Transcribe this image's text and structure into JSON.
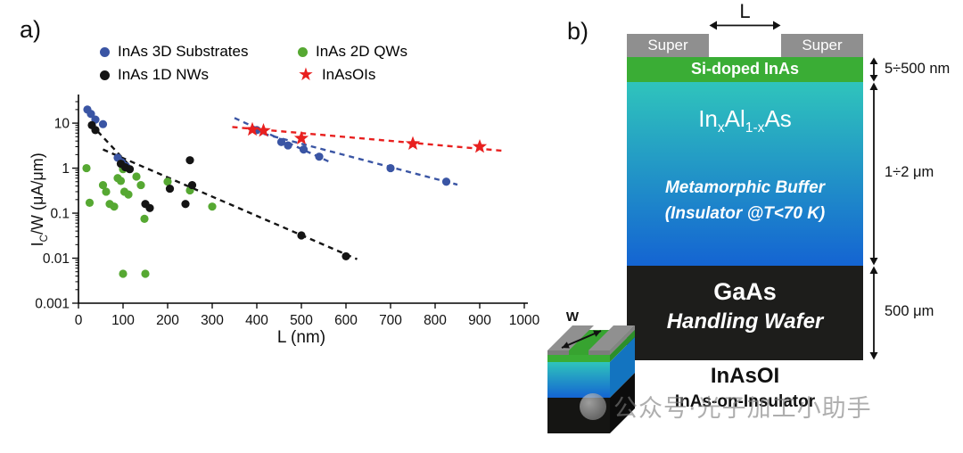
{
  "watermark": {
    "text": "公众号·光子加工小助手"
  },
  "panel_a": {
    "label": "a)",
    "xlabel": "L (nm)",
    "ylabel": {
      "pre": "I",
      "sub": "C",
      "post": "/W (μA/μm)"
    },
    "legend": [
      {
        "label": "InAs 3D Substrates"
      },
      {
        "label": "InAs 2D QWs"
      },
      {
        "label": "InAs 1D NWs"
      },
      {
        "label": "InAsOIs"
      }
    ]
  },
  "chart_data": {
    "type": "scatter",
    "title": "",
    "xlabel": "L (nm)",
    "ylabel": "IC/W (μA/μm)",
    "legend_position": "top",
    "grid": false,
    "x_axis": {
      "min": 0,
      "max": 1000,
      "ticks": [
        0,
        100,
        200,
        300,
        400,
        500,
        600,
        700,
        800,
        900,
        1000
      ]
    },
    "y_axis": {
      "scale": "log",
      "min": 0.001,
      "max": 36,
      "ticks": [
        10,
        1,
        0.1,
        0.01,
        0.001
      ],
      "tick_labels": [
        "10",
        "1",
        "0.1",
        "0.01",
        "0.001"
      ]
    },
    "series": [
      {
        "name": "InAs 3D Substrates",
        "color": "#3a55a4",
        "marker": "circle",
        "points": [
          [
            20,
            20
          ],
          [
            28,
            16
          ],
          [
            38,
            12
          ],
          [
            55,
            9.5
          ],
          [
            88,
            1.7
          ],
          [
            97,
            1.35
          ],
          [
            107,
            1.1
          ],
          [
            400,
            7
          ],
          [
            455,
            3.8
          ],
          [
            470,
            3.2
          ],
          [
            505,
            2.6
          ],
          [
            540,
            1.8
          ],
          [
            700,
            1.0
          ],
          [
            825,
            0.5
          ]
        ],
        "trendlines": [
          [
            [
              350,
              13
            ],
            [
              565,
              1.35
            ]
          ],
          [
            [
              415,
              5.8
            ],
            [
              850,
              0.43
            ]
          ]
        ]
      },
      {
        "name": "InAs 2D QWs",
        "color": "#56a832",
        "marker": "circle",
        "points": [
          [
            18,
            1.0
          ],
          [
            25,
            0.17
          ],
          [
            55,
            0.42
          ],
          [
            62,
            0.3
          ],
          [
            70,
            0.16
          ],
          [
            80,
            0.14
          ],
          [
            88,
            0.6
          ],
          [
            95,
            0.52
          ],
          [
            100,
            0.95
          ],
          [
            103,
            0.3
          ],
          [
            100,
            0.0045
          ],
          [
            112,
            0.26
          ],
          [
            130,
            0.65
          ],
          [
            140,
            0.42
          ],
          [
            148,
            0.075
          ],
          [
            150,
            0.0045
          ],
          [
            200,
            0.5
          ],
          [
            250,
            0.32
          ],
          [
            300,
            0.14
          ]
        ],
        "trendlines": []
      },
      {
        "name": "InAs 1D NWs",
        "color": "#141414",
        "marker": "circle",
        "points": [
          [
            30,
            9
          ],
          [
            38,
            7
          ],
          [
            95,
            1.25
          ],
          [
            105,
            1.05
          ],
          [
            115,
            0.95
          ],
          [
            150,
            0.16
          ],
          [
            160,
            0.13
          ],
          [
            205,
            0.35
          ],
          [
            240,
            0.16
          ],
          [
            250,
            1.5
          ],
          [
            255,
            0.42
          ],
          [
            500,
            0.032
          ],
          [
            600,
            0.011
          ]
        ],
        "trendlines": [
          [
            [
              28,
              9.5
            ],
            [
              118,
              1.05
            ]
          ],
          [
            [
              55,
              2.6
            ],
            [
              625,
              0.0095
            ]
          ]
        ]
      },
      {
        "name": "InAsOIs",
        "color": "#e8201f",
        "marker": "star",
        "points": [
          [
            390,
            7.2
          ],
          [
            415,
            6.8
          ],
          [
            500,
            4.6
          ],
          [
            750,
            3.5
          ],
          [
            900,
            3.0
          ]
        ],
        "trendlines": [
          [
            [
              345,
              8.2
            ],
            [
              958,
              2.4
            ]
          ]
        ]
      }
    ]
  },
  "panel_b": {
    "label": "b)",
    "length_label": "L",
    "width_label": "W",
    "contact_left_label": "Super",
    "contact_right_label": "Super",
    "contact_color": "#8f8f8f",
    "layers": {
      "channel": {
        "name": "Si-doped InAs",
        "thickness": "5÷500 nm",
        "color": "#3aad35"
      },
      "buffer": {
        "formula_parts": {
          "p1": "In",
          "s1": "x",
          "p2": "Al",
          "s2": "1-x",
          "p3": "As"
        },
        "role": "Metamorphic Buffer",
        "condition": "(Insulator @T<70 K)",
        "thickness": "1÷2 μm",
        "color_top": "#2fc4bc",
        "color_bottom": "#1464d2"
      },
      "substrate": {
        "name": "GaAs",
        "role": "Handling Wafer",
        "thickness": "500 μm",
        "color": "#1d1d1b"
      }
    },
    "caption_title": "InAsOI",
    "caption_subtitle": "InAs-on-Insulator"
  }
}
